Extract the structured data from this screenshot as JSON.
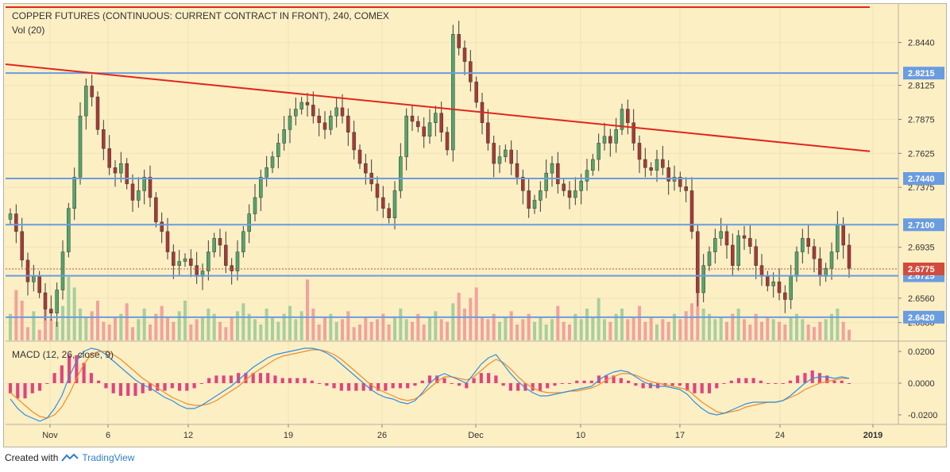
{
  "header": {
    "title": "COPPER FUTURES (CONTINUOUS: CURRENT CONTRACT IN FRONT), 240, COMEX",
    "vol_label": "Vol (20)",
    "macd_label": "MACD (12, 26, close, 9)"
  },
  "footer": {
    "prefix": "Created with",
    "brand": "TradingView"
  },
  "colors": {
    "background": "#fcefc4",
    "up": "#53a56b",
    "down": "#a63a35",
    "vol_up": "#a8cf9e",
    "vol_down": "#f2a29c",
    "hline": "#6a9ce0",
    "trend": "#e0261e",
    "macd": "#2f8fe0",
    "signal": "#f08c2a",
    "hist": "#e0447f",
    "last_price_bg": "#d24b3c"
  },
  "chart_data": [
    {
      "type": "candlestick",
      "title": "COPPER FUTURES (CONTINUOUS: CURRENT CONTRACT IN FRONT), 240, COMEX",
      "ylim": [
        2.625,
        2.87
      ],
      "y_ticks": [
        "2.8440",
        "2.8125",
        "2.7875",
        "2.7625",
        "2.7375",
        "2.6935",
        "2.6560",
        "2.6380"
      ],
      "x_ticks": [
        "Nov",
        "6",
        "12",
        "19",
        "26",
        "Dec",
        "10",
        "17",
        "24",
        "2019"
      ],
      "horizontal_levels": [
        {
          "value": 2.8215,
          "label": "2.8215"
        },
        {
          "value": 2.744,
          "label": "2.7440"
        },
        {
          "value": 2.71,
          "label": "2.7100"
        },
        {
          "value": 2.6725,
          "label": "2.6725"
        },
        {
          "value": 2.642,
          "label": "2.6420"
        }
      ],
      "last_price": {
        "value": 2.6775,
        "label": "2.6775"
      },
      "trend_lines": [
        {
          "name": "upper",
          "from": [
            0,
            2.87
          ],
          "to": [
            1.0,
            2.87
          ]
        },
        {
          "name": "descending",
          "from": [
            0,
            2.828
          ],
          "to": [
            1.0,
            2.764
          ]
        }
      ],
      "closes": [
        2.718,
        2.705,
        2.684,
        2.668,
        2.672,
        2.66,
        2.648,
        2.645,
        2.662,
        2.69,
        2.722,
        2.745,
        2.79,
        2.812,
        2.804,
        2.78,
        2.766,
        2.752,
        2.748,
        2.755,
        2.74,
        2.728,
        2.735,
        2.745,
        2.73,
        2.712,
        2.705,
        2.69,
        2.68,
        2.683,
        2.685,
        2.68,
        2.672,
        2.676,
        2.69,
        2.7,
        2.695,
        2.68,
        2.676,
        2.69,
        2.705,
        2.718,
        2.73,
        2.745,
        2.752,
        2.76,
        2.77,
        2.78,
        2.79,
        2.795,
        2.8,
        2.798,
        2.79,
        2.785,
        2.78,
        2.79,
        2.796,
        2.79,
        2.778,
        2.765,
        2.755,
        2.748,
        2.74,
        2.73,
        2.722,
        2.715,
        2.735,
        2.76,
        2.79,
        2.786,
        2.782,
        2.775,
        2.785,
        2.792,
        2.778,
        2.765,
        2.85,
        2.84,
        2.83,
        2.815,
        2.8,
        2.785,
        2.77,
        2.755,
        2.76,
        2.765,
        2.755,
        2.745,
        2.735,
        2.722,
        2.728,
        2.735,
        2.748,
        2.755,
        2.74,
        2.735,
        2.73,
        2.735,
        2.742,
        2.75,
        2.758,
        2.77,
        2.775,
        2.77,
        2.78,
        2.795,
        2.785,
        2.77,
        2.758,
        2.752,
        2.75,
        2.758,
        2.752,
        2.742,
        2.745,
        2.738,
        2.735,
        2.705,
        2.66,
        2.68,
        2.69,
        2.7,
        2.705,
        2.695,
        2.68,
        2.702,
        2.7,
        2.694,
        2.68,
        2.672,
        2.665,
        2.668,
        2.66,
        2.655,
        2.672,
        2.69,
        2.7,
        2.694,
        2.685,
        2.672,
        2.678,
        2.69,
        2.71,
        2.695,
        2.678
      ],
      "volumes": [
        1.0,
        1.9,
        1.5,
        0.5,
        1.1,
        0.4,
        1.6,
        0.8,
        0.7,
        1.3,
        2.4,
        2.0,
        1.2,
        0.9,
        1.1,
        1.5,
        0.7,
        0.6,
        0.9,
        1.0,
        1.4,
        0.5,
        0.8,
        1.2,
        0.6,
        1.0,
        1.3,
        0.9,
        0.7,
        1.1,
        1.5,
        0.6,
        0.8,
        0.9,
        1.2,
        1.0,
        0.7,
        0.5,
        0.9,
        1.1,
        1.4,
        1.0,
        0.8,
        0.6,
        1.2,
        0.9,
        0.7,
        1.0,
        1.3,
        0.8,
        1.1,
        2.3,
        1.2,
        0.6,
        0.9,
        1.0,
        0.7,
        0.8,
        1.1,
        0.5,
        0.6,
        0.9,
        0.7,
        0.8,
        1.0,
        0.6,
        0.9,
        1.2,
        0.8,
        0.7,
        1.0,
        0.6,
        0.9,
        1.1,
        0.8,
        0.7,
        1.4,
        1.8,
        1.2,
        1.6,
        2.0,
        0.9,
        0.8,
        1.0,
        0.7,
        0.9,
        1.1,
        0.6,
        0.8,
        1.0,
        0.7,
        0.9,
        0.6,
        0.8,
        1.3,
        0.7,
        0.6,
        1.0,
        0.8,
        1.2,
        0.9,
        1.6,
        0.8,
        0.7,
        1.0,
        1.2,
        0.8,
        0.9,
        1.3,
        0.7,
        0.9,
        0.6,
        0.8,
        0.7,
        1.0,
        0.8,
        1.1,
        1.4,
        2.1,
        1.2,
        1.0,
        0.8,
        0.9,
        0.7,
        1.0,
        1.2,
        0.8,
        0.6,
        1.0,
        0.7,
        0.9,
        0.8,
        0.7,
        0.6,
        0.9,
        1.0,
        0.8,
        0.6,
        0.5,
        0.7,
        0.8,
        1.0,
        1.2,
        0.7,
        0.4
      ]
    },
    {
      "type": "line",
      "title": "MACD (12, 26, close, 9)",
      "ylim": [
        -0.026,
        0.026
      ],
      "y_ticks": [
        "0.0200",
        "0.0000",
        "-0.0200"
      ],
      "series": [
        {
          "name": "MACD",
          "values": [
            -0.01,
            -0.016,
            -0.02,
            -0.022,
            -0.024,
            -0.022,
            -0.016,
            -0.008,
            0.004,
            0.014,
            0.02,
            0.022,
            0.021,
            0.018,
            0.014,
            0.01,
            0.006,
            0.002,
            -0.001,
            -0.003,
            -0.006,
            -0.009,
            -0.011,
            -0.014,
            -0.016,
            -0.016,
            -0.014,
            -0.011,
            -0.008,
            -0.005,
            -0.002,
            0.002,
            0.006,
            0.01,
            0.013,
            0.016,
            0.018,
            0.019,
            0.02,
            0.021,
            0.022,
            0.022,
            0.021,
            0.019,
            0.016,
            0.012,
            0.008,
            0.004,
            0.0,
            -0.004,
            -0.007,
            -0.009,
            -0.01,
            -0.012,
            -0.013,
            -0.011,
            -0.006,
            0.0,
            0.004,
            0.006,
            0.004,
            0.002,
            0.0,
            0.006,
            0.012,
            0.016,
            0.018,
            0.012,
            0.006,
            0.001,
            -0.003,
            -0.006,
            -0.008,
            -0.008,
            -0.007,
            -0.006,
            -0.005,
            -0.004,
            -0.003,
            -0.002,
            0.002,
            0.005,
            0.007,
            0.008,
            0.007,
            0.004,
            0.001,
            -0.001,
            -0.002,
            -0.002,
            -0.003,
            -0.004,
            -0.007,
            -0.012,
            -0.016,
            -0.019,
            -0.02,
            -0.019,
            -0.017,
            -0.015,
            -0.013,
            -0.012,
            -0.012,
            -0.012,
            -0.012,
            -0.011,
            -0.008,
            -0.004,
            0.0,
            0.003,
            0.004,
            0.004,
            0.003,
            0.004,
            0.003
          ]
        },
        {
          "name": "Signal",
          "values": [
            -0.006,
            -0.01,
            -0.014,
            -0.018,
            -0.021,
            -0.022,
            -0.02,
            -0.015,
            -0.007,
            0.003,
            0.012,
            0.018,
            0.02,
            0.02,
            0.018,
            0.015,
            0.011,
            0.007,
            0.003,
            0.0,
            -0.003,
            -0.006,
            -0.009,
            -0.011,
            -0.013,
            -0.014,
            -0.014,
            -0.013,
            -0.011,
            -0.008,
            -0.005,
            -0.002,
            0.002,
            0.006,
            0.009,
            0.012,
            0.015,
            0.017,
            0.018,
            0.019,
            0.02,
            0.021,
            0.021,
            0.02,
            0.018,
            0.015,
            0.011,
            0.007,
            0.003,
            -0.001,
            -0.004,
            -0.006,
            -0.008,
            -0.01,
            -0.011,
            -0.01,
            -0.007,
            -0.003,
            0.001,
            0.004,
            0.004,
            0.003,
            0.002,
            0.004,
            0.008,
            0.012,
            0.015,
            0.013,
            0.009,
            0.004,
            0.0,
            -0.003,
            -0.005,
            -0.006,
            -0.006,
            -0.006,
            -0.005,
            -0.005,
            -0.004,
            -0.003,
            -0.001,
            0.002,
            0.004,
            0.006,
            0.006,
            0.005,
            0.003,
            0.001,
            0.0,
            -0.001,
            -0.002,
            -0.003,
            -0.004,
            -0.008,
            -0.012,
            -0.015,
            -0.018,
            -0.019,
            -0.018,
            -0.017,
            -0.015,
            -0.014,
            -0.013,
            -0.012,
            -0.012,
            -0.011,
            -0.009,
            -0.007,
            -0.004,
            -0.002,
            0.0,
            0.001,
            0.002,
            0.003,
            0.003
          ]
        }
      ]
    }
  ]
}
